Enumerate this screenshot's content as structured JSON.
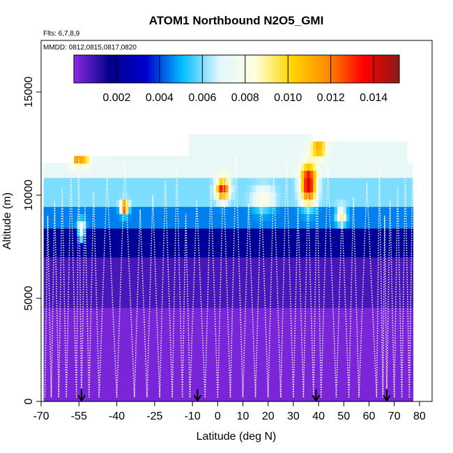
{
  "chart_data": {
    "type": "heatmap",
    "title": "ATOM1 Northbound N2O5_GMI",
    "subtitle_flights": "Flts: 6,7,8,9",
    "subtitle_dates": "MMDD: 0812,0815,0817,0820",
    "xlabel": "Latitude (deg N)",
    "ylabel": "Altitude (m)",
    "xlim": [
      -70,
      85
    ],
    "ylim": [
      0,
      17500
    ],
    "x_ticks": [
      -70,
      -55,
      -40,
      -25,
      -10,
      0,
      10,
      20,
      30,
      40,
      50,
      60,
      70,
      80
    ],
    "x_tick_labels": [
      "-70",
      "-55",
      "-40",
      "-25",
      "-10",
      "0",
      "10",
      "20",
      "30",
      "40",
      "50",
      "60",
      "70",
      "80"
    ],
    "y_ticks": [
      0,
      5000,
      10000,
      15000
    ],
    "y_tick_labels": [
      "0",
      "5000",
      "10000",
      "15000"
    ],
    "colorbar": {
      "min": 0.0,
      "max": 0.0152,
      "ticks": [
        0.002,
        0.004,
        0.006,
        0.008,
        0.01,
        0.012,
        0.014
      ],
      "tick_labels": [
        "0.002",
        "0.004",
        "0.006",
        "0.008",
        "0.010",
        "0.012",
        "0.014"
      ],
      "colors": [
        "#8a2be2",
        "#00008b",
        "#0000cd",
        "#00bfff",
        "#e0f6ff",
        "#ffffe0",
        "#ffd700",
        "#ff8c00",
        "#ff0000",
        "#8b1a1a"
      ]
    },
    "flight_markers_lat": [
      -54,
      -8,
      39,
      67
    ],
    "profile_lats": [
      -68.5,
      -66,
      -63,
      -60,
      -56,
      -54,
      -51,
      -47,
      -40,
      -33,
      -28,
      -23,
      -18,
      -14,
      -11,
      -5,
      0,
      5,
      10,
      15,
      20,
      25,
      30,
      34,
      38,
      41,
      47,
      52,
      56,
      63,
      65.5,
      67,
      70,
      73,
      76,
      79
    ],
    "grid": false
  }
}
